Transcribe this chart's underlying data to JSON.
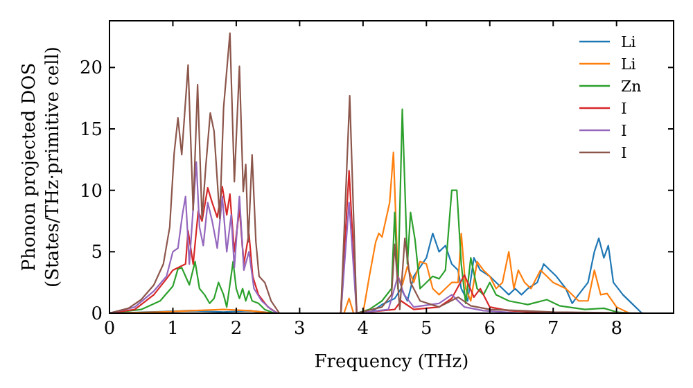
{
  "chart_data": {
    "type": "line",
    "xlabel": "Frequency (THz)",
    "ylabel": "Phonon projected DOS\n(States/THz·primitive cell)",
    "xlim": [
      0,
      8.9
    ],
    "ylim": [
      0,
      23.8
    ],
    "xticks": [
      0,
      1,
      2,
      3,
      4,
      5,
      6,
      7,
      8
    ],
    "yticks": [
      0,
      5,
      10,
      15,
      20
    ],
    "legend": "top right",
    "grid": false,
    "marker": "none",
    "line_style": "solid",
    "series": [
      {
        "name": "Li",
        "color": "#1f77b4",
        "x": [
          0,
          1.3,
          1.8,
          2.2,
          2.6,
          3.7,
          4.1,
          4.3,
          4.5,
          4.6,
          4.7,
          4.8,
          5.0,
          5.1,
          5.2,
          5.3,
          5.4,
          5.5,
          5.55,
          5.65,
          5.75,
          5.85,
          6.0,
          6.2,
          6.3,
          6.4,
          6.5,
          6.6,
          6.75,
          6.85,
          6.95,
          7.05,
          7.2,
          7.3,
          7.4,
          7.55,
          7.65,
          7.72,
          7.8,
          7.87,
          7.95,
          8.1,
          8.3,
          8.4
        ],
        "values": [
          0,
          0.2,
          0.1,
          0.2,
          0,
          0,
          0,
          0.7,
          1.2,
          2,
          1,
          3,
          4.5,
          6.5,
          5,
          5.5,
          4,
          3.5,
          2,
          1,
          4.5,
          3.5,
          3,
          2,
          1.5,
          2,
          1.5,
          2,
          2.5,
          4,
          3.5,
          3,
          2,
          0.8,
          1.5,
          2.5,
          5,
          6.1,
          4.5,
          5.5,
          2.5,
          1.5,
          0.5,
          0
        ]
      },
      {
        "name": "Li",
        "color": "#ff7f0e",
        "x": [
          0,
          0.8,
          1.3,
          1.8,
          2.2,
          2.6,
          3.7,
          3.78,
          3.85,
          4.0,
          4.1,
          4.2,
          4.25,
          4.3,
          4.42,
          4.48,
          4.55,
          4.62,
          4.7,
          4.8,
          4.9,
          5.0,
          5.1,
          5.2,
          5.3,
          5.4,
          5.5,
          5.55,
          5.62,
          5.7,
          5.8,
          5.9,
          6.0,
          6.1,
          6.2,
          6.3,
          6.38,
          6.45,
          6.55,
          6.65,
          6.8,
          6.9,
          7.0,
          7.2,
          7.4,
          7.55,
          7.65,
          7.75,
          7.85,
          8.0,
          8.2
        ],
        "values": [
          0,
          0.1,
          0.2,
          0.3,
          0.2,
          0,
          0,
          1.2,
          0,
          0,
          3,
          5.8,
          6.5,
          6.2,
          9,
          13.1,
          3,
          2.3,
          3.8,
          2.5,
          4.2,
          4,
          2,
          1.5,
          2,
          2.5,
          2.5,
          6.5,
          2,
          1,
          4.2,
          3.5,
          3,
          2,
          2.5,
          5,
          2,
          3.5,
          2.5,
          2,
          3.5,
          3,
          2.5,
          2,
          1,
          1,
          3.5,
          1.5,
          1.6,
          0.5,
          0
        ]
      },
      {
        "name": "Zn",
        "color": "#2ca02c",
        "x": [
          0,
          0.5,
          0.8,
          1.0,
          1.08,
          1.14,
          1.2,
          1.26,
          1.35,
          1.42,
          1.5,
          1.58,
          1.65,
          1.72,
          1.8,
          1.85,
          1.95,
          2.0,
          2.05,
          2.1,
          2.15,
          2.2,
          2.25,
          2.35,
          2.45,
          2.6,
          3.9,
          4.1,
          4.3,
          4.45,
          4.5,
          4.55,
          4.62,
          4.7,
          4.75,
          4.82,
          4.9,
          5.0,
          5.1,
          5.2,
          5.3,
          5.4,
          5.48,
          5.55,
          5.62,
          5.7,
          5.8,
          5.9,
          6.0,
          6.1,
          6.3,
          6.6,
          6.9,
          7.1,
          7.5,
          7.8,
          8.0,
          8.2
        ],
        "values": [
          0,
          0.3,
          1,
          2.2,
          3.6,
          3.7,
          3,
          2.3,
          4.2,
          2,
          1.5,
          0.8,
          1.2,
          2.5,
          1.5,
          0.5,
          4.2,
          2,
          1.2,
          2,
          1,
          1.8,
          1,
          0.8,
          0.3,
          0,
          0,
          0.3,
          1,
          2,
          8.2,
          2,
          16.6,
          4,
          8.2,
          6,
          2,
          2.5,
          3,
          2.8,
          3.5,
          10,
          10,
          4,
          0.8,
          4.5,
          2,
          1.5,
          2.5,
          1.5,
          1,
          0.7,
          1.1,
          0.6,
          0.3,
          0.4,
          0.1,
          0
        ]
      },
      {
        "name": "I",
        "color": "#d62728",
        "x": [
          0,
          0.4,
          0.7,
          0.9,
          1.0,
          1.2,
          1.24,
          1.32,
          1.4,
          1.46,
          1.55,
          1.62,
          1.7,
          1.78,
          1.85,
          1.9,
          1.97,
          2.05,
          2.12,
          2.2,
          2.26,
          2.35,
          2.5,
          2.65,
          3.65,
          3.78,
          3.9,
          4.5,
          4.6,
          4.8,
          5.2,
          5.4,
          5.6,
          5.75,
          5.85,
          6.0,
          6.3,
          7.0
        ],
        "values": [
          0,
          0.3,
          1.5,
          2.8,
          3.5,
          4,
          6.7,
          4,
          8.3,
          7.5,
          10.2,
          9,
          7.8,
          10.3,
          8,
          9.7,
          5,
          8.5,
          4,
          6.5,
          3,
          1.5,
          0.5,
          0,
          0,
          11.6,
          0,
          0.3,
          1,
          0.3,
          0.5,
          1.2,
          3.1,
          1.3,
          2,
          0.5,
          0.2,
          0
        ]
      },
      {
        "name": "I",
        "color": "#9467bd",
        "x": [
          0,
          0.4,
          0.7,
          0.9,
          1.0,
          1.08,
          1.15,
          1.2,
          1.26,
          1.37,
          1.42,
          1.48,
          1.55,
          1.62,
          1.7,
          1.78,
          1.85,
          1.92,
          1.97,
          2.05,
          2.12,
          2.2,
          2.28,
          2.4,
          2.55,
          2.65,
          3.65,
          3.78,
          3.9,
          4.4,
          4.55,
          4.65,
          4.8,
          5.2,
          5.4,
          5.6,
          5.9,
          6.5
        ],
        "values": [
          0,
          0.5,
          1.8,
          3,
          5,
          5.3,
          8,
          9.5,
          4,
          12.3,
          7,
          5.5,
          9,
          7.5,
          5.3,
          9.5,
          5,
          8,
          3.7,
          9.5,
          3.5,
          5,
          2,
          1,
          0.3,
          0,
          0,
          9,
          0,
          0.3,
          3,
          1.5,
          0.5,
          0.8,
          1.5,
          0.5,
          0.2,
          0
        ]
      },
      {
        "name": "I",
        "color": "#8c564b",
        "x": [
          0,
          0.3,
          0.5,
          0.7,
          0.85,
          0.95,
          1.02,
          1.08,
          1.14,
          1.24,
          1.32,
          1.39,
          1.46,
          1.52,
          1.59,
          1.65,
          1.74,
          1.8,
          1.9,
          1.97,
          2.05,
          2.11,
          2.15,
          2.19,
          2.25,
          2.31,
          2.36,
          2.45,
          2.55,
          2.68,
          3.65,
          3.79,
          3.9,
          4.3,
          4.45,
          4.5,
          4.58,
          4.66,
          4.75,
          4.9,
          5.2,
          5.5,
          5.7,
          6.0,
          7.0,
          8.5
        ],
        "values": [
          0,
          0.4,
          1.1,
          2.3,
          4,
          7,
          13,
          15.9,
          12.9,
          20.2,
          8.4,
          18.6,
          7.7,
          12,
          16.3,
          14.8,
          7.7,
          16.7,
          22.8,
          10.7,
          20.1,
          9.9,
          12.1,
          5.8,
          12.9,
          5.8,
          3,
          2.5,
          1,
          0,
          0,
          17.7,
          0,
          0.5,
          1.5,
          5.6,
          0.3,
          6.1,
          2.5,
          1,
          0.5,
          1.3,
          0.6,
          0.3,
          0.1,
          0
        ]
      }
    ]
  }
}
